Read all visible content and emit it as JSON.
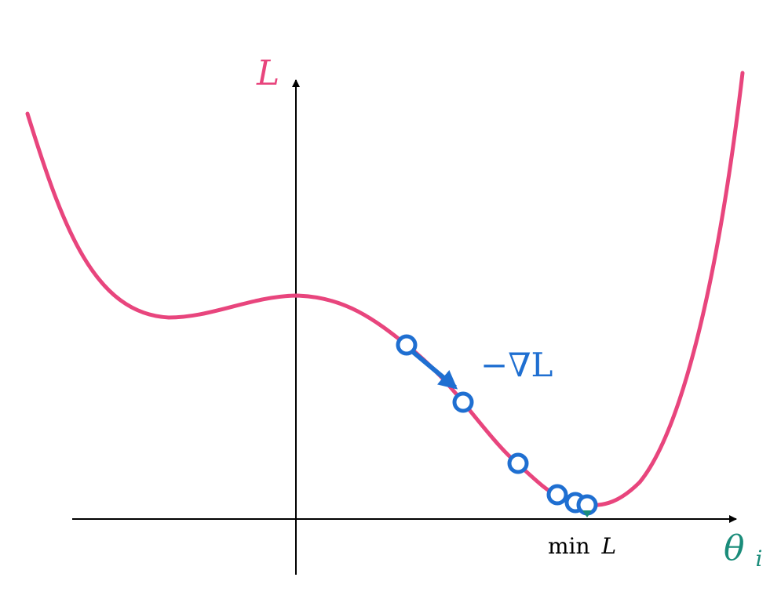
{
  "labels": {
    "y_axis": "L",
    "x_axis_main": "θ",
    "x_axis_sub": "i",
    "gradient": "−∇L",
    "minimum_fn": "min",
    "minimum_var": "L"
  },
  "colors": {
    "curve": "#e8457d",
    "marker": "#1f6fd1",
    "x_label": "#1a8c7a",
    "axis": "#000000",
    "tick": "#1a8c7a"
  },
  "icons": {
    "gradient_arrow": "arrow-down-right-icon",
    "minimum_tick": "small-down-arrow-icon"
  }
}
